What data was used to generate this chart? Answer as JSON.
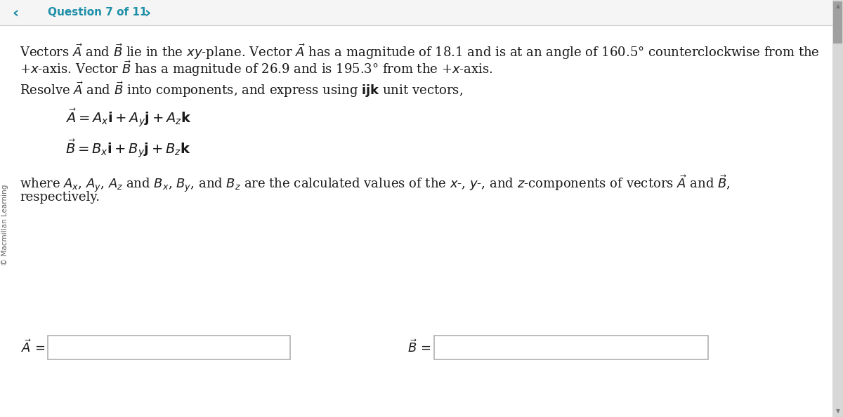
{
  "bg_color": "#e8e8e8",
  "content_bg": "#ffffff",
  "header_bg": "#f5f5f5",
  "header_text_color": "#1e8fa8",
  "nav_arrow_color": "#1e8fa8",
  "sidebar_text": "© Macmillan Learning",
  "sidebar_text_color": "#666666",
  "main_text_color": "#1a1a1a",
  "body_line1": "Vectors $\\vec{A}$ and $\\vec{B}$ lie in the $xy$-plane. Vector $\\vec{A}$ has a magnitude of 18.1 and is at an angle of 160.5° counterclockwise from the",
  "body_line2": "+$x$-axis. Vector $\\vec{B}$ has a magnitude of 26.9 and is 195.3° from the +$x$-axis.",
  "resolve_line": "Resolve $\\vec{A}$ and $\\vec{B}$ into components, and express using $\\mathbf{ijk}$ unit vectors,",
  "eq_A": "$\\vec{A} = A_x\\mathbf{i} + A_y\\mathbf{j} + A_z\\mathbf{k}$",
  "eq_B": "$\\vec{B} = B_x\\mathbf{i} + B_y\\mathbf{j} + B_z\\mathbf{k}$",
  "where_line1": "where $A_x$, $A_y$, $A_z$ and $B_x$, $B_y$, and $B_z$ are the calculated values of the $x$-, $y$-, and $z$-components of vectors $\\vec{A}$ and $\\vec{B}$,",
  "where_line2": "respectively.",
  "label_A": "$\\vec{A}\\,=$",
  "label_B": "$\\vec{B}\\,=$",
  "input_fill": "#ffffff",
  "input_border": "#b0b0b0",
  "divider_color": "#cccccc",
  "scroll_bg": "#d8d8d8",
  "scroll_thumb": "#a0a0a0",
  "header_text": "Question 7 of 11",
  "header_fontsize": 11,
  "body_fontsize": 13,
  "eq_fontsize": 14,
  "where_fontsize": 13,
  "label_fontsize": 13,
  "sidebar_fontsize": 7.5
}
